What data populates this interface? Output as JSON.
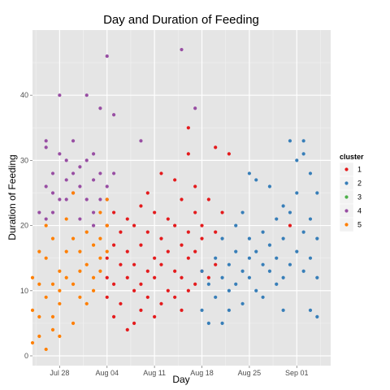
{
  "chart_data": {
    "type": "scatter",
    "title": "Day and Duration of Feeding",
    "xlabel": "Day",
    "ylabel": "Duration of Feeding",
    "x_scale": "date",
    "xlim": [
      "2013-07-24",
      "2013-09-06"
    ],
    "ylim": [
      -1.5,
      50
    ],
    "x_ticks": [
      {
        "date": "2013-07-28",
        "label": "Jul 28"
      },
      {
        "date": "2013-08-04",
        "label": "Aug 04"
      },
      {
        "date": "2013-08-11",
        "label": "Aug 11"
      },
      {
        "date": "2013-08-18",
        "label": "Aug 18"
      },
      {
        "date": "2013-08-25",
        "label": "Aug 25"
      },
      {
        "date": "2013-09-01",
        "label": "Sep 01"
      }
    ],
    "y_ticks": [
      0,
      10,
      20,
      30,
      40
    ],
    "grid": true,
    "legend": {
      "title": "cluster",
      "position": "right",
      "entries": [
        {
          "label": "1",
          "color": "#e41a1c"
        },
        {
          "label": "2",
          "color": "#377eb8"
        },
        {
          "label": "3",
          "color": "#4daf4a"
        },
        {
          "label": "4",
          "color": "#984ea3"
        },
        {
          "label": "5",
          "color": "#ff7f00"
        }
      ]
    },
    "series": [
      {
        "name": "1",
        "color": "#e41a1c",
        "points": [
          [
            "2013-08-04",
            20
          ],
          [
            "2013-08-04",
            15
          ],
          [
            "2013-08-04",
            12
          ],
          [
            "2013-08-04",
            9
          ],
          [
            "2013-08-05",
            17
          ],
          [
            "2013-08-05",
            11
          ],
          [
            "2013-08-05",
            6
          ],
          [
            "2013-08-05",
            22
          ],
          [
            "2013-08-06",
            14
          ],
          [
            "2013-08-06",
            8
          ],
          [
            "2013-08-06",
            19
          ],
          [
            "2013-08-07",
            4
          ],
          [
            "2013-08-07",
            12
          ],
          [
            "2013-08-07",
            16
          ],
          [
            "2013-08-07",
            21
          ],
          [
            "2013-08-08",
            5
          ],
          [
            "2013-08-08",
            10
          ],
          [
            "2013-08-08",
            14
          ],
          [
            "2013-08-08",
            20
          ],
          [
            "2013-08-09",
            7
          ],
          [
            "2013-08-09",
            11
          ],
          [
            "2013-08-09",
            17
          ],
          [
            "2013-08-09",
            23
          ],
          [
            "2013-08-10",
            9
          ],
          [
            "2013-08-10",
            13
          ],
          [
            "2013-08-10",
            19
          ],
          [
            "2013-08-10",
            25
          ],
          [
            "2013-08-11",
            6
          ],
          [
            "2013-08-11",
            12
          ],
          [
            "2013-08-11",
            15
          ],
          [
            "2013-08-11",
            22
          ],
          [
            "2013-08-12",
            8
          ],
          [
            "2013-08-12",
            14
          ],
          [
            "2013-08-12",
            18
          ],
          [
            "2013-08-12",
            28
          ],
          [
            "2013-08-13",
            10
          ],
          [
            "2013-08-13",
            16
          ],
          [
            "2013-08-13",
            21
          ],
          [
            "2013-08-14",
            9
          ],
          [
            "2013-08-14",
            13
          ],
          [
            "2013-08-14",
            20
          ],
          [
            "2013-08-14",
            27
          ],
          [
            "2013-08-15",
            7
          ],
          [
            "2013-08-15",
            12
          ],
          [
            "2013-08-15",
            17
          ],
          [
            "2013-08-15",
            24
          ],
          [
            "2013-08-16",
            10
          ],
          [
            "2013-08-16",
            15
          ],
          [
            "2013-08-16",
            19
          ],
          [
            "2013-08-16",
            31
          ],
          [
            "2013-08-16",
            35
          ],
          [
            "2013-08-17",
            11
          ],
          [
            "2013-08-17",
            16
          ],
          [
            "2013-08-17",
            22
          ],
          [
            "2013-08-17",
            26
          ],
          [
            "2013-08-18",
            13
          ],
          [
            "2013-08-18",
            18
          ],
          [
            "2013-08-18",
            20
          ],
          [
            "2013-08-19",
            12
          ],
          [
            "2013-08-19",
            24
          ],
          [
            "2013-08-20",
            14
          ],
          [
            "2013-08-20",
            19
          ],
          [
            "2013-08-20",
            32
          ],
          [
            "2013-08-21",
            22
          ],
          [
            "2013-08-22",
            31
          ],
          [
            "2013-08-31",
            20
          ]
        ]
      },
      {
        "name": "2",
        "color": "#377eb8",
        "points": [
          [
            "2013-08-18",
            13
          ],
          [
            "2013-08-18",
            7
          ],
          [
            "2013-08-19",
            11
          ],
          [
            "2013-08-19",
            5
          ],
          [
            "2013-08-20",
            15
          ],
          [
            "2013-08-20",
            9
          ],
          [
            "2013-08-21",
            12
          ],
          [
            "2013-08-21",
            5
          ],
          [
            "2013-08-21",
            18
          ],
          [
            "2013-08-22",
            10
          ],
          [
            "2013-08-22",
            14
          ],
          [
            "2013-08-22",
            7
          ],
          [
            "2013-08-23",
            16
          ],
          [
            "2013-08-23",
            11
          ],
          [
            "2013-08-23",
            20
          ],
          [
            "2013-08-24",
            13
          ],
          [
            "2013-08-24",
            8
          ],
          [
            "2013-08-24",
            22
          ],
          [
            "2013-08-25",
            15
          ],
          [
            "2013-08-25",
            12
          ],
          [
            "2013-08-25",
            28
          ],
          [
            "2013-08-25",
            18
          ],
          [
            "2013-08-26",
            10
          ],
          [
            "2013-08-26",
            16
          ],
          [
            "2013-08-26",
            27
          ],
          [
            "2013-08-27",
            14
          ],
          [
            "2013-08-27",
            19
          ],
          [
            "2013-08-27",
            9
          ],
          [
            "2013-08-28",
            13
          ],
          [
            "2013-08-28",
            17
          ],
          [
            "2013-08-28",
            26
          ],
          [
            "2013-08-29",
            11
          ],
          [
            "2013-08-29",
            15
          ],
          [
            "2013-08-29",
            21
          ],
          [
            "2013-08-30",
            12
          ],
          [
            "2013-08-30",
            18
          ],
          [
            "2013-08-30",
            23
          ],
          [
            "2013-08-30",
            7
          ],
          [
            "2013-08-31",
            14
          ],
          [
            "2013-08-31",
            22
          ],
          [
            "2013-08-31",
            33
          ],
          [
            "2013-09-01",
            16
          ],
          [
            "2013-09-01",
            25
          ],
          [
            "2013-09-01",
            30
          ],
          [
            "2013-09-02",
            13
          ],
          [
            "2013-09-02",
            19
          ],
          [
            "2013-09-02",
            31
          ],
          [
            "2013-09-02",
            33
          ],
          [
            "2013-09-03",
            15
          ],
          [
            "2013-09-03",
            21
          ],
          [
            "2013-09-03",
            28
          ],
          [
            "2013-09-03",
            7
          ],
          [
            "2013-09-04",
            18
          ],
          [
            "2013-09-04",
            25
          ],
          [
            "2013-09-04",
            6
          ],
          [
            "2013-09-04",
            12
          ]
        ]
      },
      {
        "name": "4",
        "color": "#984ea3",
        "points": [
          [
            "2013-07-25",
            22
          ],
          [
            "2013-07-26",
            21
          ],
          [
            "2013-07-26",
            33
          ],
          [
            "2013-07-26",
            32
          ],
          [
            "2013-07-26",
            26
          ],
          [
            "2013-07-27",
            25
          ],
          [
            "2013-07-27",
            28
          ],
          [
            "2013-07-27",
            22
          ],
          [
            "2013-07-28",
            40
          ],
          [
            "2013-07-28",
            31
          ],
          [
            "2013-07-28",
            24
          ],
          [
            "2013-07-29",
            27
          ],
          [
            "2013-07-29",
            30
          ],
          [
            "2013-07-29",
            24
          ],
          [
            "2013-07-30",
            33
          ],
          [
            "2013-07-30",
            28
          ],
          [
            "2013-07-30",
            25
          ],
          [
            "2013-07-31",
            29
          ],
          [
            "2013-07-31",
            26
          ],
          [
            "2013-07-31",
            21
          ],
          [
            "2013-08-01",
            40
          ],
          [
            "2013-08-01",
            30
          ],
          [
            "2013-08-01",
            24
          ],
          [
            "2013-08-02",
            27
          ],
          [
            "2013-08-02",
            31
          ],
          [
            "2013-08-02",
            20
          ],
          [
            "2013-08-02",
            22
          ],
          [
            "2013-08-03",
            38
          ],
          [
            "2013-08-03",
            28
          ],
          [
            "2013-08-03",
            24
          ],
          [
            "2013-08-04",
            46
          ],
          [
            "2013-08-04",
            26
          ],
          [
            "2013-08-04",
            24
          ],
          [
            "2013-08-05",
            28
          ],
          [
            "2013-08-05",
            37
          ],
          [
            "2013-08-09",
            33
          ],
          [
            "2013-08-15",
            47
          ],
          [
            "2013-08-17",
            38
          ]
        ]
      },
      {
        "name": "5",
        "color": "#ff7f00",
        "points": [
          [
            "2013-07-24",
            7
          ],
          [
            "2013-07-24",
            2
          ],
          [
            "2013-07-24",
            12
          ],
          [
            "2013-07-25",
            3
          ],
          [
            "2013-07-25",
            11
          ],
          [
            "2013-07-25",
            16
          ],
          [
            "2013-07-25",
            6
          ],
          [
            "2013-07-26",
            1
          ],
          [
            "2013-07-26",
            9
          ],
          [
            "2013-07-26",
            15
          ],
          [
            "2013-07-26",
            20
          ],
          [
            "2013-07-27",
            4
          ],
          [
            "2013-07-27",
            11
          ],
          [
            "2013-07-27",
            18
          ],
          [
            "2013-07-27",
            6
          ],
          [
            "2013-07-28",
            13
          ],
          [
            "2013-07-28",
            8
          ],
          [
            "2013-07-28",
            10
          ],
          [
            "2013-07-28",
            3
          ],
          [
            "2013-07-29",
            16
          ],
          [
            "2013-07-29",
            21
          ],
          [
            "2013-07-29",
            12
          ],
          [
            "2013-07-30",
            25
          ],
          [
            "2013-07-30",
            18
          ],
          [
            "2013-07-30",
            11
          ],
          [
            "2013-07-30",
            5
          ],
          [
            "2013-07-31",
            16
          ],
          [
            "2013-07-31",
            13
          ],
          [
            "2013-07-31",
            9
          ],
          [
            "2013-08-01",
            19
          ],
          [
            "2013-08-01",
            14
          ],
          [
            "2013-08-01",
            8
          ],
          [
            "2013-08-02",
            17
          ],
          [
            "2013-08-02",
            12
          ],
          [
            "2013-08-02",
            10
          ],
          [
            "2013-08-03",
            22
          ],
          [
            "2013-08-03",
            15
          ],
          [
            "2013-08-03",
            13
          ],
          [
            "2013-08-03",
            18
          ],
          [
            "2013-08-04",
            24
          ],
          [
            "2013-08-04",
            20
          ],
          [
            "2013-08-04",
            16
          ]
        ]
      }
    ]
  }
}
